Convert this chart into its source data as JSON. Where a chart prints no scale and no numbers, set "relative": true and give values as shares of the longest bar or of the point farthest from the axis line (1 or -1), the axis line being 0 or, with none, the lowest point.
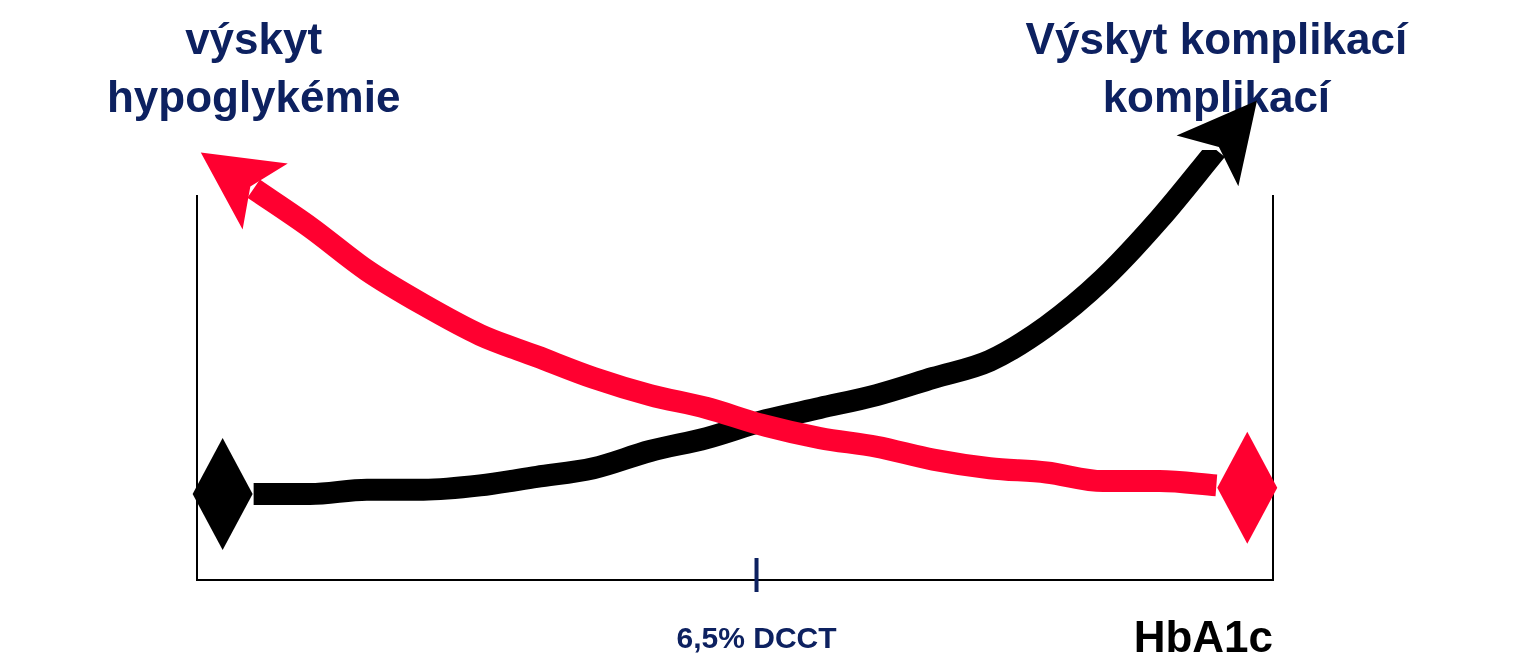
{
  "chart_data": {
    "type": "line",
    "relative": true,
    "xlabel": "HbA1c",
    "categories": [
      null,
      null,
      null,
      null,
      null,
      null,
      null,
      null,
      null,
      null,
      null,
      null,
      null,
      null,
      null,
      null,
      null,
      null,
      null,
      null
    ],
    "series": [
      {
        "name": "výskyt hypoglykémie",
        "color": "#ff0030",
        "values": [
          null,
          0.91,
          0.82,
          0.72,
          0.64,
          0.57,
          0.52,
          0.47,
          0.43,
          0.4,
          0.36,
          0.33,
          0.31,
          0.28,
          0.26,
          0.25,
          0.23,
          0.23,
          0.22,
          null
        ]
      },
      {
        "name": "Výskyt komplikací komplikací",
        "color": "#000000",
        "values": [
          null,
          0.2,
          0.2,
          0.21,
          0.21,
          0.22,
          0.24,
          0.26,
          0.3,
          0.33,
          0.37,
          0.4,
          0.43,
          0.47,
          0.51,
          0.59,
          0.7,
          0.84,
          1.0,
          null
        ]
      }
    ],
    "annotations": [
      "6,5% DCCT"
    ],
    "legend": false
  }
}
